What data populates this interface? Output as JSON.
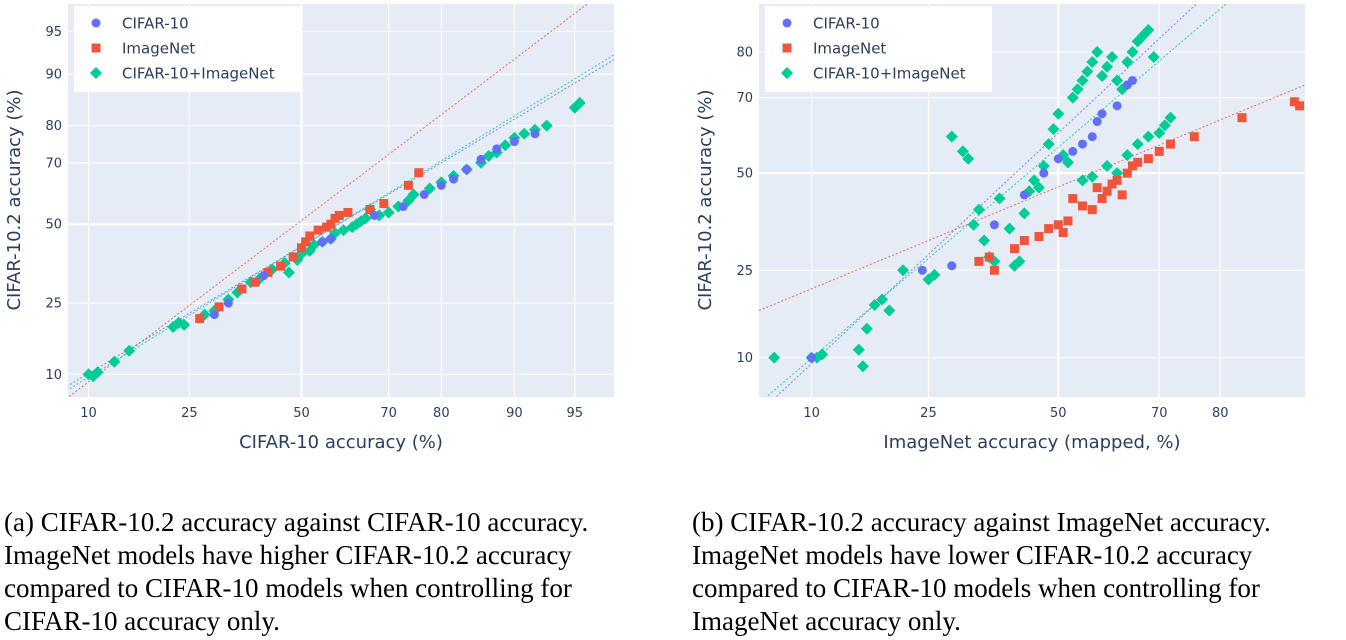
{
  "chart_data": [
    {
      "type": "scatter",
      "panel_id": "a",
      "xlabel": "CIFAR-10 accuracy (%)",
      "ylabel": "CIFAR-10.2 accuracy (%)",
      "axis_scale": "probit",
      "xlim": [
        8,
        97
      ],
      "ylim": [
        7,
        97
      ],
      "xticks": [
        10,
        25,
        50,
        70,
        80,
        90,
        95
      ],
      "yticks": [
        10,
        25,
        50,
        70,
        80,
        90,
        95
      ],
      "grid": true,
      "legend": "top-left",
      "series": [
        {
          "name": "CIFAR-10",
          "marker": "circle",
          "color": "#636efa",
          "points": [
            [
              30,
              22
            ],
            [
              33,
              25
            ],
            [
              41,
              33
            ],
            [
              55,
              44
            ],
            [
              57,
              45
            ],
            [
              67,
              53
            ],
            [
              73,
              56
            ],
            [
              77,
              60
            ],
            [
              80,
              63
            ],
            [
              82,
              65
            ],
            [
              84,
              68
            ],
            [
              86,
              71
            ],
            [
              88,
              74
            ],
            [
              90,
              76
            ],
            [
              92,
              78
            ]
          ]
        },
        {
          "name": "ImageNet",
          "marker": "square",
          "color": "#ef553b",
          "points": [
            [
              27,
              21
            ],
            [
              31,
              24
            ],
            [
              36,
              29
            ],
            [
              39,
              31
            ],
            [
              42,
              34
            ],
            [
              45,
              36
            ],
            [
              48,
              39
            ],
            [
              50,
              42
            ],
            [
              51,
              44
            ],
            [
              52,
              46
            ],
            [
              54,
              48
            ],
            [
              56,
              49
            ],
            [
              57,
              50
            ],
            [
              58,
              52
            ],
            [
              59,
              53
            ],
            [
              61,
              54
            ],
            [
              66,
              55
            ],
            [
              69,
              57
            ],
            [
              74,
              63
            ],
            [
              76,
              67
            ]
          ]
        },
        {
          "name": "CIFAR-10+ImageNet",
          "marker": "diamond",
          "color": "#00cc96",
          "points": [
            [
              10,
              10
            ],
            [
              10.5,
              9.7
            ],
            [
              11,
              10.3
            ],
            [
              13,
              12
            ],
            [
              15,
              14
            ],
            [
              22,
              19
            ],
            [
              23,
              20
            ],
            [
              24,
              19.5
            ],
            [
              28,
              22
            ],
            [
              30,
              23
            ],
            [
              33,
              26
            ],
            [
              35,
              28
            ],
            [
              38,
              31
            ],
            [
              40,
              32
            ],
            [
              43,
              35
            ],
            [
              46,
              37
            ],
            [
              47,
              34
            ],
            [
              49,
              38
            ],
            [
              50,
              40
            ],
            [
              52,
              41
            ],
            [
              53,
              43
            ],
            [
              55,
              44
            ],
            [
              57,
              45
            ],
            [
              58,
              47
            ],
            [
              60,
              48
            ],
            [
              62,
              49
            ],
            [
              63,
              50
            ],
            [
              64,
              51
            ],
            [
              65,
              52
            ],
            [
              66,
              55
            ],
            [
              68,
              53
            ],
            [
              70,
              54
            ],
            [
              72,
              56
            ],
            [
              74,
              58
            ],
            [
              75,
              60
            ],
            [
              78,
              62
            ],
            [
              80,
              64
            ],
            [
              82,
              66
            ],
            [
              84,
              68
            ],
            [
              86,
              70
            ],
            [
              87,
              72
            ],
            [
              88,
              73
            ],
            [
              89,
              75
            ],
            [
              90,
              77
            ],
            [
              91,
              78
            ],
            [
              92,
              79
            ],
            [
              93,
              80
            ],
            [
              95,
              84
            ],
            [
              95.3,
              85
            ]
          ]
        }
      ],
      "fit_lines": [
        {
          "color": "#ef553b",
          "style": "dotted",
          "points": [
            [
              7,
              6
            ],
            [
              97,
              98
            ]
          ]
        },
        {
          "color": "#636efa",
          "style": "dotted",
          "points": [
            [
              7,
              7.5
            ],
            [
              97,
              92
            ]
          ]
        },
        {
          "color": "#00cc96",
          "style": "dotted",
          "points": [
            [
              7,
              7
            ],
            [
              97,
              92.6
            ]
          ]
        }
      ]
    },
    {
      "type": "scatter",
      "panel_id": "b",
      "xlabel": "ImageNet accuracy (mapped, %)",
      "ylabel": "CIFAR-10.2 accuracy (%)",
      "axis_scale": "probit",
      "xlim": [
        6,
        90
      ],
      "ylim": [
        6,
        88
      ],
      "xticks": [
        10,
        25,
        50,
        70,
        80
      ],
      "yticks": [
        10,
        25,
        50,
        70,
        80
      ],
      "grid": true,
      "legend": "top-left",
      "series": [
        {
          "name": "CIFAR-10",
          "marker": "circle",
          "color": "#636efa",
          "points": [
            [
              10,
              10
            ],
            [
              24,
              25
            ],
            [
              29,
              26
            ],
            [
              37,
              36
            ],
            [
              43,
              44
            ],
            [
              47,
              50
            ],
            [
              50,
              54
            ],
            [
              53,
              56
            ],
            [
              55,
              58
            ],
            [
              57,
              60
            ],
            [
              58,
              64
            ],
            [
              59,
              66
            ],
            [
              62,
              68
            ],
            [
              64,
              73
            ],
            [
              65,
              74
            ]
          ]
        },
        {
          "name": "ImageNet",
          "marker": "square",
          "color": "#ef553b",
          "points": [
            [
              34,
              27
            ],
            [
              36,
              28
            ],
            [
              37,
              25
            ],
            [
              41,
              30
            ],
            [
              43,
              32
            ],
            [
              46,
              33
            ],
            [
              48,
              35
            ],
            [
              50,
              36
            ],
            [
              51,
              34
            ],
            [
              52,
              37
            ],
            [
              53,
              43
            ],
            [
              55,
              41
            ],
            [
              57,
              40
            ],
            [
              58,
              46
            ],
            [
              59,
              43
            ],
            [
              60,
              45
            ],
            [
              61,
              47
            ],
            [
              62,
              48
            ],
            [
              63,
              44
            ],
            [
              64,
              50
            ],
            [
              65,
              52
            ],
            [
              66,
              53
            ],
            [
              68,
              54
            ],
            [
              70,
              56
            ],
            [
              72,
              58
            ],
            [
              76,
              60
            ],
            [
              83,
              65
            ],
            [
              89,
              69
            ],
            [
              89.5,
              68
            ]
          ]
        },
        {
          "name": "CIFAR-10+ImageNet",
          "marker": "diamond",
          "color": "#00cc96",
          "points": [
            [
              7,
              10
            ],
            [
              10,
              10
            ],
            [
              10.5,
              10
            ],
            [
              11,
              10.4
            ],
            [
              15,
              11
            ],
            [
              15.5,
              9
            ],
            [
              16,
              14
            ],
            [
              17,
              18
            ],
            [
              18,
              19
            ],
            [
              19,
              17
            ],
            [
              21,
              25
            ],
            [
              25,
              23
            ],
            [
              26,
              24
            ],
            [
              29,
              60
            ],
            [
              31,
              56
            ],
            [
              32,
              54
            ],
            [
              33,
              36
            ],
            [
              34,
              40
            ],
            [
              35,
              32
            ],
            [
              36,
              28
            ],
            [
              37,
              27
            ],
            [
              38,
              43
            ],
            [
              40,
              35
            ],
            [
              41,
              26
            ],
            [
              42,
              27
            ],
            [
              43,
              39
            ],
            [
              44,
              45
            ],
            [
              45,
              48
            ],
            [
              46,
              46
            ],
            [
              47,
              52
            ],
            [
              48,
              58
            ],
            [
              49,
              62
            ],
            [
              50,
              66
            ],
            [
              51,
              55
            ],
            [
              52,
              53
            ],
            [
              53,
              70
            ],
            [
              54,
              72
            ],
            [
              55,
              74
            ],
            [
              56,
              76
            ],
            [
              57,
              78
            ],
            [
              58,
              80
            ],
            [
              59,
              75
            ],
            [
              60,
              77
            ],
            [
              61,
              79
            ],
            [
              62,
              74
            ],
            [
              63,
              72
            ],
            [
              64,
              78
            ],
            [
              65,
              80
            ],
            [
              66,
              82
            ],
            [
              67,
              83
            ],
            [
              68,
              84
            ],
            [
              69,
              79
            ],
            [
              70,
              61
            ],
            [
              71,
              63
            ],
            [
              72,
              65
            ],
            [
              60,
              52
            ],
            [
              62,
              50
            ],
            [
              64,
              55
            ],
            [
              66,
              58
            ],
            [
              68,
              60
            ],
            [
              55,
              48
            ],
            [
              57,
              49
            ]
          ]
        }
      ],
      "fit_lines": [
        {
          "color": "#ef553b",
          "style": "dotted",
          "points": [
            [
              6,
              17
            ],
            [
              90,
              73
            ]
          ]
        },
        {
          "color": "#636efa",
          "style": "dotted",
          "points": [
            [
              6,
              4.8
            ],
            [
              90,
              97
            ]
          ]
        },
        {
          "color": "#00cc96",
          "style": "dotted",
          "points": [
            [
              6,
              5.5
            ],
            [
              90,
              95
            ]
          ]
        }
      ]
    }
  ],
  "captions": {
    "a": {
      "label": "(a)",
      "lines": [
        "CIFAR-10.2 accuracy against CIFAR-10 accuracy.",
        "ImageNet models have higher CIFAR-10.2 accuracy",
        "compared to CIFAR-10 models when controlling for",
        "CIFAR-10 accuracy only."
      ]
    },
    "b": {
      "label": "(b)",
      "lines": [
        "CIFAR-10.2 accuracy against ImageNet accuracy.",
        "ImageNet models have lower CIFAR-10.2 accuracy",
        "compared to CIFAR-10 models when controlling for",
        "ImageNet accuracy only."
      ]
    }
  },
  "colors": {
    "plot_background": "#e5ecf6",
    "grid": "#ffffff",
    "axis_text": "#2a3f5f"
  }
}
